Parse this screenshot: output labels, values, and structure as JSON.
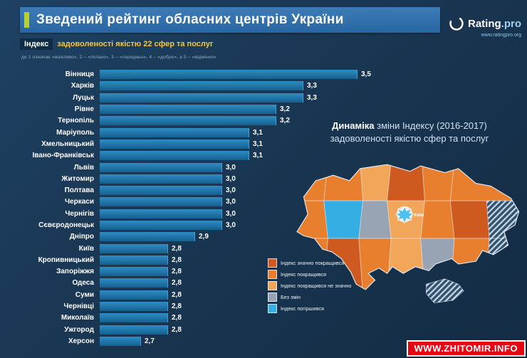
{
  "header": {
    "title": "Зведений рейтинг обласних центрів України"
  },
  "brand": {
    "name": "Rating",
    "suffix": ".pro",
    "url": "www.ratingpro.org"
  },
  "subtitle": {
    "chip": "Індекс",
    "text": "задоволеності якістю 22 сфер та послуг",
    "caption": "де 1 означає «жахливо», 2 – «погано», 3 – «середньо», 4 – «добре», а 5 – «відмінно»"
  },
  "chart_data": {
    "type": "bar",
    "orientation": "horizontal",
    "title": "Індекс задоволеності якістю 22 сфер та послуг",
    "categories": [
      "Вінниця",
      "Харків",
      "Луцьк",
      "Рівне",
      "Тернопіль",
      "Маріуполь",
      "Хмельницький",
      "Івано-Франківськ",
      "Львів",
      "Житомир",
      "Полтава",
      "Черкаси",
      "Чернігів",
      "Сєвєродонецьк",
      "Дніпро",
      "Київ",
      "Кропивницький",
      "Запоріжжя",
      "Одеса",
      "Суми",
      "Чернівці",
      "Миколаїв",
      "Ужгород",
      "Херсон"
    ],
    "values": [
      3.5,
      3.3,
      3.3,
      3.2,
      3.2,
      3.1,
      3.1,
      3.1,
      3.0,
      3.0,
      3.0,
      3.0,
      3.0,
      3.0,
      2.9,
      2.8,
      2.8,
      2.8,
      2.8,
      2.8,
      2.8,
      2.8,
      2.8,
      2.7
    ],
    "value_labels": [
      "3,5",
      "3,3",
      "3,3",
      "3,2",
      "3,2",
      "3,1",
      "3,1",
      "3,1",
      "3,0",
      "3,0",
      "3,0",
      "3,0",
      "3,0",
      "3,0",
      "2,9",
      "2,8",
      "2,8",
      "2,8",
      "2,8",
      "2,8",
      "2,8",
      "2,8",
      "2,8",
      "2,7"
    ],
    "rating_scale": [
      1,
      5
    ],
    "bar_color": "#1f76ad"
  },
  "map_panel": {
    "title_bold": "Динаміка",
    "title_rest": "зміни Індексу (2016-2017)",
    "title_line2": "задоволеності якістю сфер та послуг",
    "kyiv_label": "Київ",
    "legend": [
      {
        "label": "Індекс значно покращився",
        "color": "#cf5a20"
      },
      {
        "label": "Індекс покращився",
        "color": "#e87f2e"
      },
      {
        "label": "Індекс покращився не значно",
        "color": "#f2a65a"
      },
      {
        "label": "Без змін",
        "color": "#98a4b3"
      },
      {
        "label": "Індекс погіршився",
        "color": "#35aee3"
      }
    ],
    "region_categories": [
      1,
      1,
      2,
      0,
      1,
      1,
      1,
      4,
      3,
      2,
      1,
      0,
      "hatched",
      1,
      0,
      1,
      2,
      3,
      1,
      "hatched"
    ]
  },
  "watermark": {
    "text": "WWW.ZHITOMIR.INFO"
  }
}
